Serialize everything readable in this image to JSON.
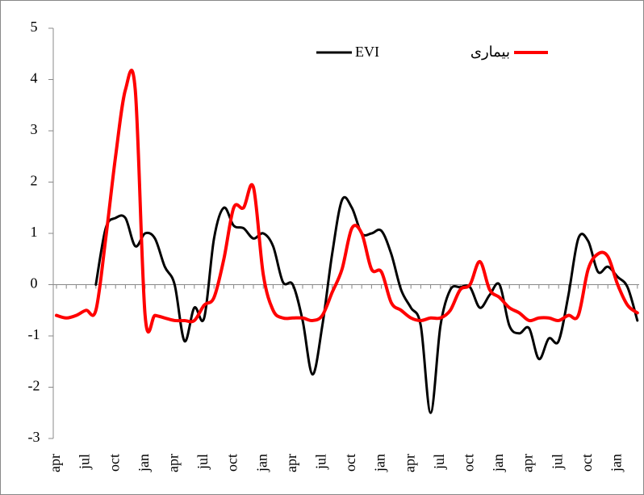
{
  "chart_data": {
    "type": "line",
    "categories": [
      "apr",
      null,
      null,
      "jul",
      null,
      null,
      "oct",
      null,
      null,
      "jan",
      null,
      null,
      "apr",
      null,
      null,
      "jul",
      null,
      null,
      "oct",
      null,
      null,
      "jan",
      null,
      null,
      "apr",
      null,
      null,
      "jul",
      null,
      null,
      "oct",
      null,
      null,
      "jan",
      null,
      null,
      "apr",
      null,
      null,
      "jul",
      null,
      null,
      "oct",
      null,
      null,
      "jan",
      null,
      null,
      "apr",
      null,
      null,
      "jul",
      null,
      null,
      "oct",
      null,
      null,
      "jan",
      null,
      null
    ],
    "series": [
      {
        "name": "EVI",
        "color": "#000000",
        "values": [
          null,
          null,
          null,
          null,
          0,
          1.1,
          1.3,
          1.3,
          0.75,
          1.0,
          0.9,
          0.35,
          0.0,
          -1.1,
          -0.45,
          -0.65,
          0.9,
          1.5,
          1.15,
          1.1,
          0.9,
          1.0,
          0.75,
          0.05,
          0.0,
          -0.7,
          -1.75,
          -0.8,
          0.6,
          1.65,
          1.5,
          1.0,
          1.0,
          1.05,
          0.6,
          -0.1,
          -0.45,
          -0.8,
          -2.5,
          -0.8,
          -0.1,
          -0.05,
          -0.05,
          -0.45,
          -0.2,
          0.0,
          -0.8,
          -0.95,
          -0.85,
          -1.45,
          -1.05,
          -1.1,
          -0.2,
          0.9,
          0.85,
          0.25,
          0.35,
          0.15,
          -0.05,
          -0.7
        ]
      },
      {
        "name": "بیماری",
        "color": "#ff0000",
        "values": [
          -0.6,
          -0.65,
          -0.6,
          -0.5,
          -0.5,
          0.9,
          2.5,
          3.8,
          3.8,
          -0.6,
          -0.6,
          -0.65,
          -0.7,
          -0.7,
          -0.7,
          -0.4,
          -0.25,
          0.5,
          1.5,
          1.5,
          1.9,
          0.2,
          -0.5,
          -0.65,
          -0.65,
          -0.65,
          -0.7,
          -0.6,
          -0.15,
          0.3,
          1.1,
          1.0,
          0.3,
          0.25,
          -0.35,
          -0.5,
          -0.65,
          -0.7,
          -0.65,
          -0.65,
          -0.5,
          -0.1,
          0.0,
          0.45,
          -0.1,
          -0.25,
          -0.45,
          -0.55,
          -0.7,
          -0.65,
          -0.65,
          -0.7,
          -0.6,
          -0.6,
          0.3,
          0.6,
          0.55,
          0.0,
          -0.4,
          -0.55
        ]
      }
    ],
    "ylim": [
      -3,
      5
    ],
    "yticks": [
      -3,
      -2,
      -1,
      0,
      1,
      2,
      3,
      4,
      5
    ],
    "grid": false
  }
}
